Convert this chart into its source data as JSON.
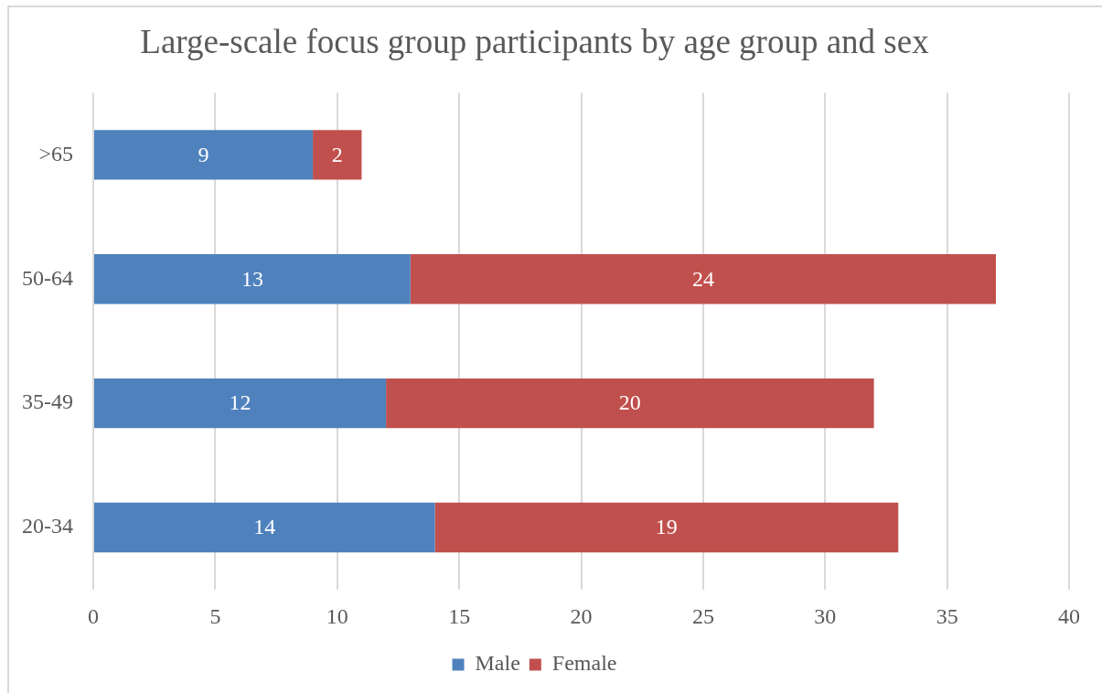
{
  "chart_data": {
    "type": "bar",
    "orientation": "horizontal",
    "stacked": true,
    "title": "Large-scale focus group participants by age group and sex",
    "categories": [
      ">65",
      "50-64",
      "35-49",
      "20-34"
    ],
    "series": [
      {
        "name": "Male",
        "color": "#4f81bd",
        "values": [
          9,
          13,
          12,
          14
        ]
      },
      {
        "name": "Female",
        "color": "#c0504d",
        "values": [
          2,
          24,
          20,
          19
        ]
      }
    ],
    "xlim": [
      0,
      40
    ],
    "xticks": [
      0,
      5,
      10,
      15,
      20,
      25,
      30,
      35,
      40
    ],
    "grid": "x",
    "legend": "bottom",
    "data_labels": true
  }
}
